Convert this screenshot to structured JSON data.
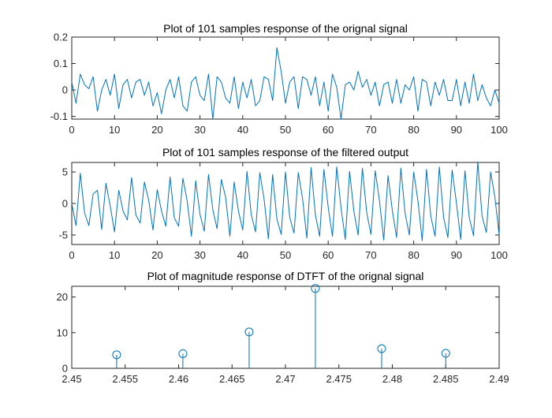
{
  "chart_data": [
    {
      "type": "line",
      "title": "Plot of 101 samples response of the orignal signal",
      "xlabel": "",
      "ylabel": "",
      "xlim": [
        0,
        100
      ],
      "ylim": [
        -0.11,
        0.2
      ],
      "xticks": [
        "0",
        "10",
        "20",
        "30",
        "40",
        "50",
        "60",
        "70",
        "80",
        "90",
        "100"
      ],
      "yticks": [
        "-0.1",
        "0",
        "0.1",
        "0.2"
      ],
      "grid": false,
      "color": "#0072BD",
      "series": [
        {
          "values": [
            0.03,
            -0.05,
            0.06,
            0.02,
            0.005,
            0.05,
            -0.08,
            0.0,
            0.04,
            -0.02,
            0.06,
            -0.07,
            0.02,
            0.04,
            -0.03,
            0.03,
            0.04,
            -0.02,
            0.03,
            -0.06,
            -0.01,
            -0.09,
            0.0,
            0.04,
            -0.03,
            0.05,
            -0.06,
            -0.08,
            0.03,
            0.05,
            -0.02,
            -0.04,
            0.06,
            -0.11,
            0.05,
            0.03,
            -0.03,
            -0.05,
            0.05,
            -0.07,
            0.03,
            -0.03,
            0.04,
            -0.06,
            -0.04,
            0.05,
            0.04,
            -0.04,
            0.16,
            0.07,
            -0.05,
            0.03,
            0.05,
            -0.07,
            0.05,
            0.04,
            -0.02,
            0.05,
            -0.06,
            0.03,
            -0.08,
            0.06,
            0.01,
            -0.11,
            0.02,
            0.03,
            0.0,
            0.07,
            0.01,
            0.04,
            -0.02,
            0.03,
            -0.06,
            0.02,
            0.03,
            -0.05,
            0.04,
            -0.05,
            0.02,
            0.0,
            0.05,
            -0.08,
            0.04,
            0.03,
            -0.06,
            0.03,
            -0.02,
            0.04,
            -0.04,
            -0.04,
            0.04,
            -0.06,
            0.03,
            -0.05,
            0.06,
            -0.04,
            0.02,
            -0.03,
            -0.06,
            0.0,
            -0.05
          ]
        }
      ]
    },
    {
      "type": "line",
      "title": "Plot of 101 samples response of the filtered output",
      "xlabel": "",
      "ylabel": "",
      "xlim": [
        0,
        100
      ],
      "ylim": [
        -6.5,
        6.5
      ],
      "xticks": [
        "0",
        "10",
        "20",
        "30",
        "40",
        "50",
        "60",
        "70",
        "80",
        "90",
        "100"
      ],
      "yticks": [
        "-5",
        "0",
        "5"
      ],
      "grid": false,
      "color": "#0072BD",
      "series": [
        {
          "values": [
            0.0,
            -3.5,
            4.8,
            -1.5,
            -3.5,
            1.5,
            2.1,
            -4.1,
            3.2,
            -0.4,
            -4.5,
            2.1,
            -1.2,
            -2.6,
            4.1,
            -1.8,
            -3.1,
            3.4,
            0.5,
            -4.2,
            2.2,
            -1.2,
            -3.6,
            4.2,
            -2.3,
            -3.6,
            4.0,
            0.4,
            -5.2,
            3.6,
            -1.7,
            -4.4,
            4.6,
            -1.0,
            -4.0,
            3.8,
            1.0,
            -5.2,
            3.4,
            -1.2,
            -4.2,
            5.1,
            -1.8,
            -4.5,
            4.9,
            0.7,
            -5.6,
            4.6,
            -2.5,
            -4.9,
            5.0,
            -2.2,
            -4.7,
            4.9,
            0.8,
            -5.5,
            5.7,
            -1.8,
            -5.2,
            5.4,
            -0.6,
            -5.2,
            5.8,
            -0.7,
            -5.7,
            5.1,
            -1.2,
            -5.0,
            5.6,
            -1.4,
            -4.9,
            5.2,
            0.4,
            -5.8,
            4.4,
            -1.1,
            -5.4,
            5.6,
            -1.6,
            -5.0,
            5.0,
            0.4,
            -5.9,
            5.4,
            -2.0,
            -5.2,
            5.8,
            -2.2,
            -5.4,
            5.3,
            0.1,
            -5.7,
            5.2,
            -2.2,
            -5.1,
            6.6,
            -2.0,
            -4.6,
            5.0,
            1.0,
            -5.0
          ]
        }
      ]
    },
    {
      "type": "stem",
      "title": "Plot of magnitude response of DTFT of the orignal signal",
      "xlabel": "",
      "ylabel": "",
      "xlim": [
        2.45,
        2.49
      ],
      "ylim": [
        0,
        23
      ],
      "xticks": [
        "2.45",
        "2.455",
        "2.46",
        "2.465",
        "2.47",
        "2.475",
        "2.48",
        "2.485",
        "2.49"
      ],
      "yticks": [
        "0",
        "10",
        "20"
      ],
      "grid": false,
      "color": "#0072BD",
      "x": [
        2.4542,
        2.4604,
        2.4666,
        2.4728,
        2.479,
        2.485
      ],
      "series": [
        {
          "values": [
            3.8,
            4.1,
            10.2,
            22.4,
            5.5,
            4.2
          ]
        }
      ]
    }
  ]
}
